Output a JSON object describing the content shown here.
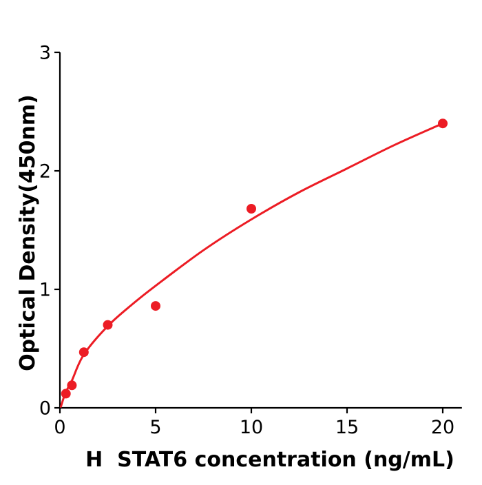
{
  "figure": {
    "background": "#ffffff"
  },
  "colors": {
    "series_red": "#ec1c24",
    "axis_black": "#000000",
    "text_black": "#000000"
  },
  "chart_data": {
    "type": "scatter",
    "title": "",
    "xlabel": "H  STAT6 concentration (ng/mL)",
    "ylabel": "Optical Density(450nm)",
    "xlim": [
      0,
      21
    ],
    "ylim": [
      0,
      3
    ],
    "x_ticks": [
      0,
      5,
      10,
      15,
      20
    ],
    "y_ticks": [
      0,
      1,
      2,
      3
    ],
    "grid": false,
    "legend": null,
    "series": [
      {
        "name": "standard-points",
        "type": "scatter",
        "color": "#ec1c24",
        "marker": "circle",
        "points": [
          {
            "x": 0.313,
            "y": 0.12
          },
          {
            "x": 0.625,
            "y": 0.19
          },
          {
            "x": 1.25,
            "y": 0.47
          },
          {
            "x": 2.5,
            "y": 0.7
          },
          {
            "x": 5,
            "y": 0.86
          },
          {
            "x": 10,
            "y": 1.68
          },
          {
            "x": 20,
            "y": 2.4
          }
        ]
      },
      {
        "name": "fitted-curve",
        "type": "line",
        "color": "#ec1c24",
        "points": [
          {
            "x": 0.05,
            "y": 0.01
          },
          {
            "x": 0.3,
            "y": 0.13
          },
          {
            "x": 0.625,
            "y": 0.23
          },
          {
            "x": 1.25,
            "y": 0.45
          },
          {
            "x": 2.5,
            "y": 0.69
          },
          {
            "x": 3.75,
            "y": 0.87
          },
          {
            "x": 5,
            "y": 1.03
          },
          {
            "x": 7.5,
            "y": 1.33
          },
          {
            "x": 10,
            "y": 1.59
          },
          {
            "x": 12.5,
            "y": 1.82
          },
          {
            "x": 15,
            "y": 2.02
          },
          {
            "x": 17.5,
            "y": 2.22
          },
          {
            "x": 20,
            "y": 2.4
          }
        ]
      }
    ]
  }
}
